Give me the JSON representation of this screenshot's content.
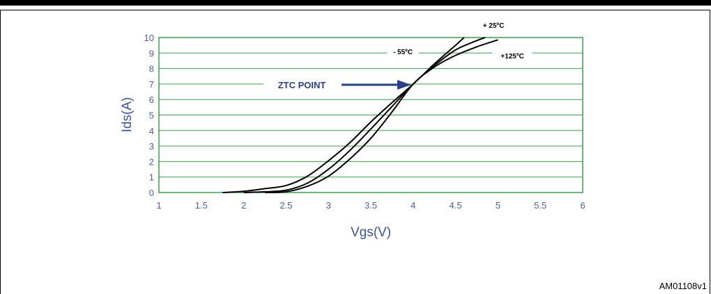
{
  "chart_data": {
    "type": "line",
    "title": "",
    "xlabel": "Vgs(V)",
    "ylabel": "Ids(A)",
    "xlim": [
      1,
      6
    ],
    "ylim": [
      0,
      10
    ],
    "x_ticks": [
      "1",
      "1.5",
      "2",
      "2.5",
      "3",
      "3.5",
      "4",
      "4.5",
      "5",
      "5.5",
      "6"
    ],
    "y_ticks": [
      "0",
      "1",
      "2",
      "3",
      "4",
      "5",
      "6",
      "7",
      "8",
      "9",
      "10"
    ],
    "grid": "horizontal",
    "colors": {
      "curves": "#000000",
      "grid": "#39a44a",
      "axis_text": "#3d52a0",
      "arrow": "#2b3f8f"
    },
    "series": [
      {
        "name": "- 55ºC",
        "points": [
          [
            1.75,
            0
          ],
          [
            2,
            0.08
          ],
          [
            2.25,
            0.25
          ],
          [
            2.5,
            0.45
          ],
          [
            2.75,
            1.05
          ],
          [
            3,
            2.05
          ],
          [
            3.25,
            3.2
          ],
          [
            3.5,
            4.55
          ],
          [
            3.75,
            5.8
          ],
          [
            4,
            7.0
          ],
          [
            4.25,
            8.3
          ],
          [
            4.5,
            9.5
          ],
          [
            4.6,
            10
          ]
        ]
      },
      {
        "name": "+ 25ºC",
        "points": [
          [
            2,
            0
          ],
          [
            2.25,
            0.05
          ],
          [
            2.5,
            0.15
          ],
          [
            2.75,
            0.6
          ],
          [
            3,
            1.5
          ],
          [
            3.25,
            2.7
          ],
          [
            3.5,
            4.1
          ],
          [
            3.75,
            5.55
          ],
          [
            4,
            7.0
          ],
          [
            4.25,
            8.2
          ],
          [
            4.5,
            9.2
          ],
          [
            4.75,
            9.8
          ],
          [
            4.85,
            10
          ]
        ]
      },
      {
        "name": "+125ºC",
        "points": [
          [
            2.25,
            0
          ],
          [
            2.5,
            0.05
          ],
          [
            2.75,
            0.4
          ],
          [
            3,
            1.05
          ],
          [
            3.25,
            2.15
          ],
          [
            3.5,
            3.5
          ],
          [
            3.75,
            5.2
          ],
          [
            4,
            7.0
          ],
          [
            4.25,
            8.1
          ],
          [
            4.5,
            8.85
          ],
          [
            4.75,
            9.4
          ],
          [
            5,
            9.85
          ]
        ]
      }
    ],
    "annotations": [
      {
        "text": "ZTC POINT",
        "x": 4,
        "y": 7
      }
    ]
  },
  "figure_code": "AM01108v1"
}
